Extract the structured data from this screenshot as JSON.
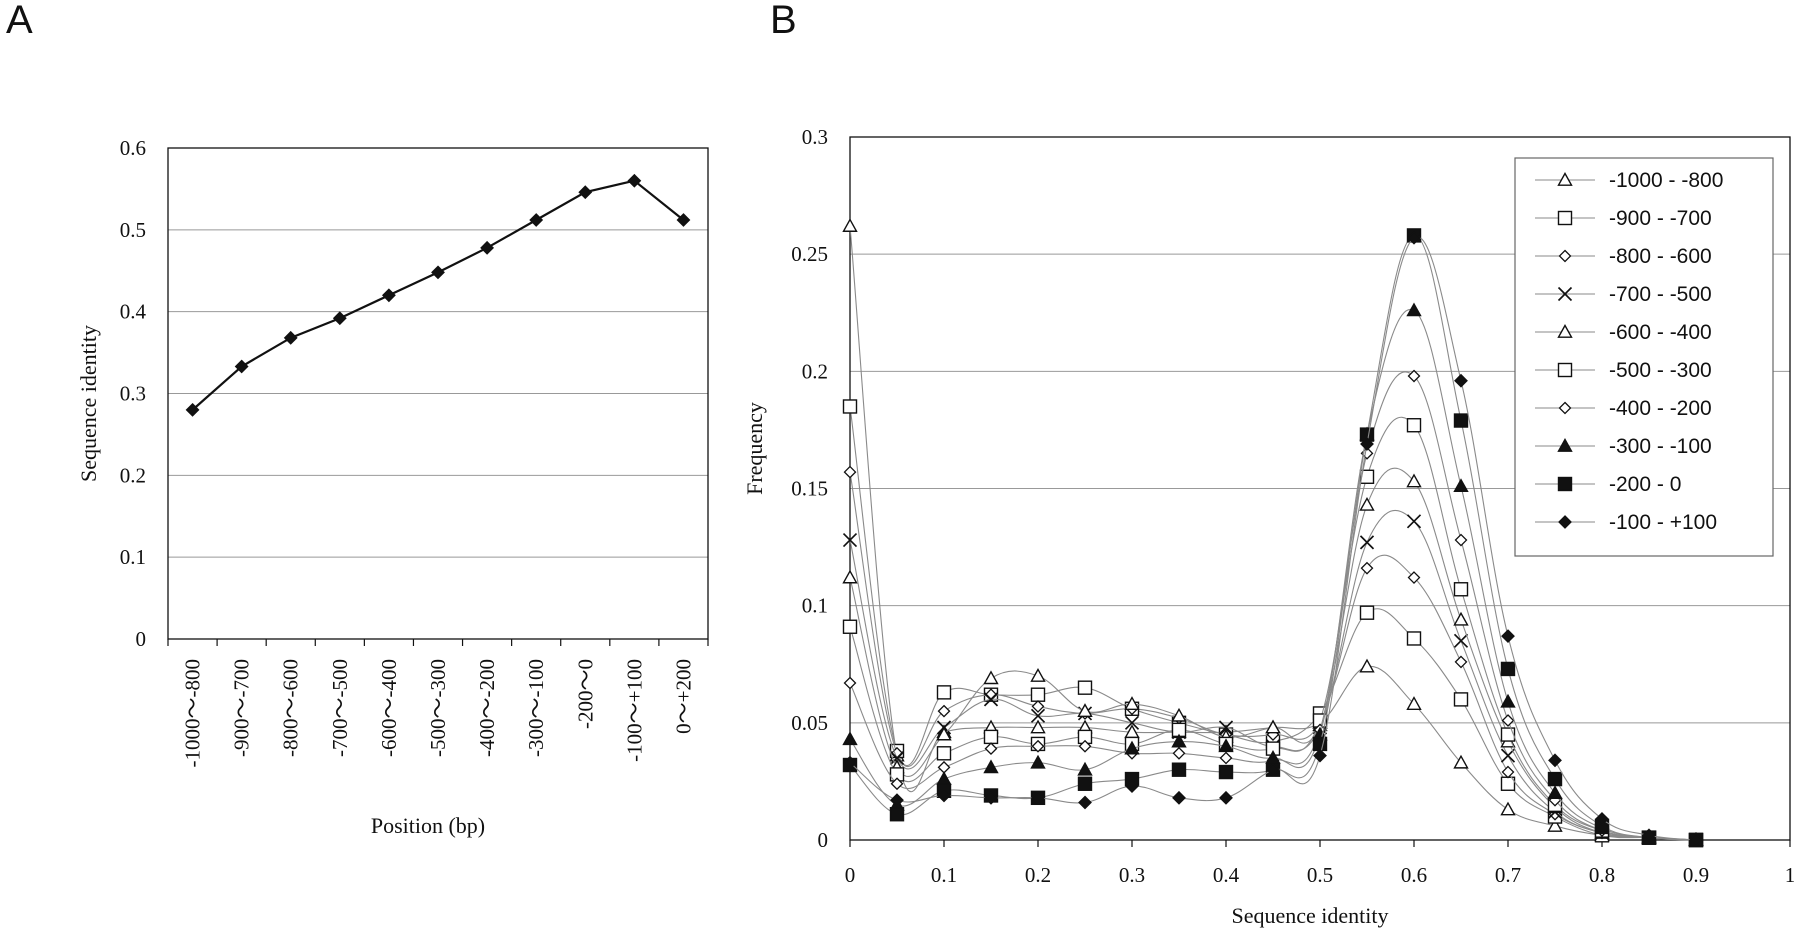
{
  "panels": {
    "a_letter": "A",
    "b_letter": "B"
  },
  "chart_data": [
    {
      "type": "line",
      "panel": "A",
      "xlabel": "Position (bp)",
      "ylabel": "Sequence identity",
      "ylim": [
        0,
        0.6
      ],
      "yticks": [
        "0",
        "0.1",
        "0.2",
        "0.3",
        "0.4",
        "0.5",
        "0.6"
      ],
      "categories": [
        "-1000～-800",
        "-900～-700",
        "-800～-600",
        "-700～-500",
        "-600～-400",
        "-500～-300",
        "-400～-200",
        "-300～-100",
        "-200～0",
        "-100～+100",
        "0～+200"
      ],
      "values": [
        0.28,
        0.333,
        0.368,
        0.392,
        0.42,
        0.448,
        0.478,
        0.512,
        0.546,
        0.56,
        0.512
      ],
      "grid": "horizontal",
      "marker": "diamond-filled",
      "color": "#111111"
    },
    {
      "type": "line",
      "panel": "B",
      "xlabel": "Sequence identity",
      "ylabel": "Frequency",
      "xlim": [
        0,
        1
      ],
      "ylim": [
        0,
        0.3
      ],
      "xticks": [
        "0",
        "0.1",
        "0.2",
        "0.3",
        "0.4",
        "0.5",
        "0.6",
        "0.7",
        "0.8",
        "0.9",
        "1"
      ],
      "yticks": [
        "0",
        "0.05",
        "0.1",
        "0.15",
        "0.2",
        "0.25",
        "0.3"
      ],
      "x": [
        0,
        0.05,
        0.1,
        0.15,
        0.2,
        0.25,
        0.3,
        0.35,
        0.4,
        0.45,
        0.5,
        0.55,
        0.6,
        0.65,
        0.7,
        0.75,
        0.8,
        0.85,
        0.9
      ],
      "grid": "horizontal",
      "legend_position": "top-right",
      "series": [
        {
          "name": "-1000 - -800",
          "marker": "triangle-open",
          "values": [
            0.262,
            0.036,
            0.046,
            0.048,
            0.048,
            0.048,
            0.046,
            0.046,
            0.046,
            0.048,
            0.05,
            0.074,
            0.058,
            0.033,
            0.013,
            0.006,
            0.002,
            0.001,
            0
          ]
        },
        {
          "name": "-900 - -700",
          "marker": "square-open",
          "values": [
            0.185,
            0.038,
            0.063,
            0.062,
            0.062,
            0.065,
            0.056,
            0.05,
            0.045,
            0.042,
            0.054,
            0.097,
            0.086,
            0.06,
            0.024,
            0.01,
            0.002,
            0.001,
            0
          ]
        },
        {
          "name": "-800 - -600",
          "marker": "diamond-open",
          "values": [
            0.157,
            0.037,
            0.055,
            0.062,
            0.057,
            0.054,
            0.056,
            0.052,
            0.045,
            0.045,
            0.05,
            0.116,
            0.112,
            0.076,
            0.029,
            0.011,
            0.003,
            0.001,
            0
          ]
        },
        {
          "name": "-700 - -500",
          "marker": "cross",
          "values": [
            0.128,
            0.035,
            0.048,
            0.06,
            0.053,
            0.054,
            0.05,
            0.046,
            0.048,
            0.04,
            0.048,
            0.127,
            0.136,
            0.085,
            0.036,
            0.012,
            0.003,
            0.001,
            0
          ]
        },
        {
          "name": "-600 - -400",
          "marker": "triangle-open",
          "values": [
            0.112,
            0.031,
            0.045,
            0.069,
            0.07,
            0.055,
            0.058,
            0.053,
            0.044,
            0.048,
            0.049,
            0.143,
            0.153,
            0.094,
            0.042,
            0.014,
            0.003,
            0.001,
            0
          ]
        },
        {
          "name": "-500 - -300",
          "marker": "square-open",
          "values": [
            0.091,
            0.028,
            0.037,
            0.044,
            0.041,
            0.044,
            0.041,
            0.047,
            0.041,
            0.039,
            0.051,
            0.155,
            0.177,
            0.107,
            0.045,
            0.015,
            0.004,
            0.001,
            0
          ]
        },
        {
          "name": "-400 - -200",
          "marker": "diamond-open",
          "values": [
            0.067,
            0.024,
            0.031,
            0.039,
            0.04,
            0.04,
            0.037,
            0.037,
            0.035,
            0.034,
            0.047,
            0.165,
            0.198,
            0.128,
            0.051,
            0.017,
            0.004,
            0.001,
            0
          ]
        },
        {
          "name": "-300 - -100",
          "marker": "triangle-filled",
          "values": [
            0.043,
            0.015,
            0.026,
            0.031,
            0.033,
            0.03,
            0.039,
            0.042,
            0.04,
            0.035,
            0.045,
            0.173,
            0.226,
            0.151,
            0.059,
            0.02,
            0.005,
            0.001,
            0
          ]
        },
        {
          "name": "-200 - 0",
          "marker": "square-filled",
          "values": [
            0.032,
            0.011,
            0.021,
            0.019,
            0.018,
            0.024,
            0.026,
            0.03,
            0.029,
            0.03,
            0.041,
            0.173,
            0.258,
            0.179,
            0.073,
            0.026,
            0.006,
            0.001,
            0
          ]
        },
        {
          "name": "-100 - +100",
          "marker": "diamond-filled",
          "values": [
            0.033,
            0.017,
            0.019,
            0.018,
            0.018,
            0.016,
            0.023,
            0.018,
            0.018,
            0.03,
            0.036,
            0.169,
            0.257,
            0.196,
            0.087,
            0.034,
            0.009,
            0.002,
            0
          ]
        }
      ]
    }
  ]
}
